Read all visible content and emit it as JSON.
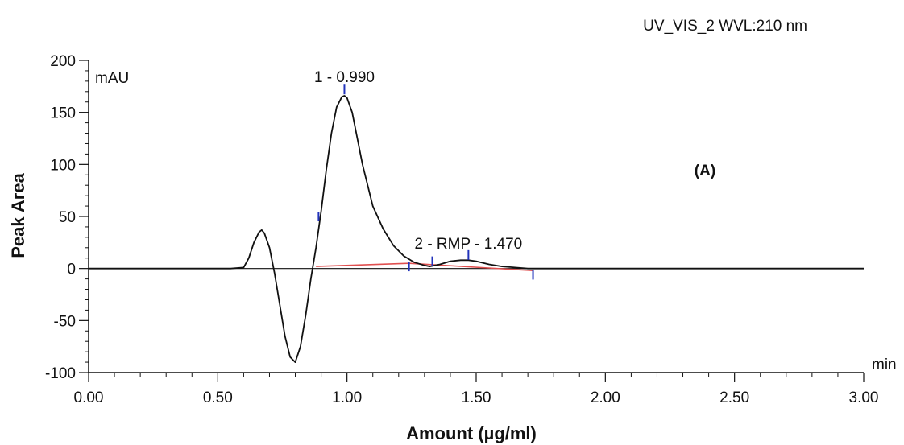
{
  "chart_data": {
    "type": "line",
    "title": "UV_VIS_2 WVL:210 nm",
    "panel_label": "(A)",
    "xlabel": "Amount (µg/ml)",
    "ylabel": "Peak Area",
    "x_unit": "min",
    "y_unit": "mAU",
    "xlim": [
      0,
      3
    ],
    "ylim": [
      -100,
      200
    ],
    "x_ticks": [
      0,
      0.5,
      1.0,
      1.5,
      2.0,
      2.5,
      3.0
    ],
    "x_tick_labels": [
      "0.00",
      "0.50",
      "1.00",
      "1.50",
      "2.00",
      "2.50",
      "3.00"
    ],
    "y_ticks": [
      -100,
      -50,
      0,
      50,
      100,
      150,
      200
    ],
    "y_tick_labels": [
      "-100",
      "-50",
      "0",
      "50",
      "100",
      "150",
      "200"
    ],
    "grid": false,
    "series": [
      {
        "values_x": [
          0.0,
          0.1,
          0.2,
          0.3,
          0.4,
          0.48,
          0.55,
          0.6,
          0.62,
          0.64,
          0.66,
          0.67,
          0.68,
          0.7,
          0.72,
          0.74,
          0.76,
          0.78,
          0.8,
          0.82,
          0.84,
          0.86,
          0.88,
          0.9,
          0.92,
          0.94,
          0.96,
          0.98,
          0.99,
          1.0,
          1.02,
          1.04,
          1.06,
          1.08,
          1.1,
          1.14,
          1.18,
          1.22,
          1.26,
          1.3,
          1.32,
          1.36,
          1.4,
          1.44,
          1.47,
          1.5,
          1.55,
          1.6,
          1.65,
          1.7,
          1.75,
          2.0,
          2.5,
          3.0
        ],
        "values_y": [
          0,
          0,
          0,
          0,
          0,
          0,
          0,
          1,
          10,
          25,
          35,
          37,
          34,
          20,
          -5,
          -35,
          -65,
          -85,
          -90,
          -75,
          -45,
          -10,
          20,
          55,
          95,
          130,
          155,
          165,
          166,
          164,
          150,
          125,
          100,
          80,
          60,
          38,
          22,
          12,
          6,
          3,
          2,
          4,
          7,
          8,
          8,
          7,
          4,
          2,
          1,
          0,
          0,
          0,
          0,
          0
        ],
        "color": "#111111"
      }
    ],
    "baselines": [
      {
        "x": [
          0.88,
          1.24
        ],
        "y": [
          2,
          5
        ],
        "color": "#e05050"
      },
      {
        "x": [
          1.24,
          1.72
        ],
        "y": [
          5,
          -2
        ],
        "color": "#e05050"
      }
    ],
    "peak_markers": [
      {
        "x": 0.99,
        "y": 172
      },
      {
        "x": 0.89,
        "y": 50
      },
      {
        "x": 1.24,
        "y": 2
      },
      {
        "x": 1.33,
        "y": 7
      },
      {
        "x": 1.47,
        "y": 13
      },
      {
        "x": 1.72,
        "y": -6
      }
    ],
    "peak_labels": [
      {
        "text": "1 - 0.990",
        "x": 0.99,
        "y": 179
      },
      {
        "text": "2 - RMP - 1.470",
        "x": 1.47,
        "y": 19
      }
    ],
    "marker_color": "#2233bb",
    "axis_color": "#111111"
  }
}
